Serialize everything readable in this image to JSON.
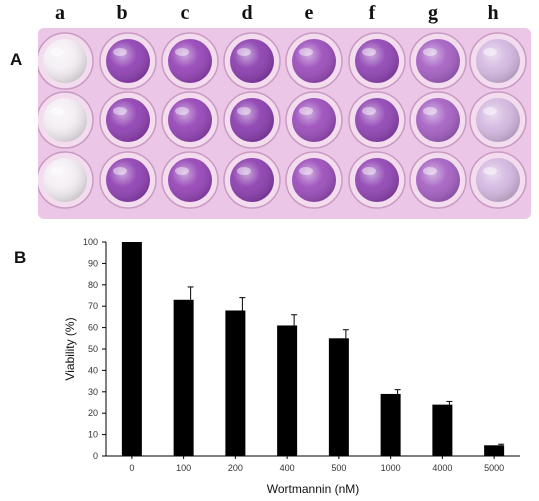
{
  "panel_a": {
    "label": "A",
    "column_letters": [
      "a",
      "b",
      "c",
      "d",
      "e",
      "f",
      "g",
      "h"
    ],
    "rows": 3,
    "well_colors": [
      "#f3eef3",
      "#8e3fb2",
      "#9442b6",
      "#8a3cae",
      "#9a4bba",
      "#8f43b3",
      "#a45fc2",
      "#d3b7e0"
    ],
    "plate_color": "#ecc6e6"
  },
  "panel_b": {
    "label": "B"
  },
  "chart_data": {
    "type": "bar",
    "categories": [
      "0",
      "100",
      "200",
      "400",
      "500",
      "1000",
      "4000",
      "5000"
    ],
    "values": [
      100,
      73,
      68,
      61,
      55,
      29,
      24,
      5
    ],
    "errors": [
      0,
      6,
      6,
      5,
      4,
      2,
      1.5,
      0.5
    ],
    "xlabel": "Wortmannin (nM)",
    "ylabel": "Viability (%)",
    "ylim": [
      0,
      100
    ],
    "yticks": [
      0,
      10,
      20,
      30,
      40,
      50,
      60,
      70,
      80,
      90,
      100
    ],
    "bar_color": "#000000",
    "grid": false,
    "legend": "none"
  }
}
